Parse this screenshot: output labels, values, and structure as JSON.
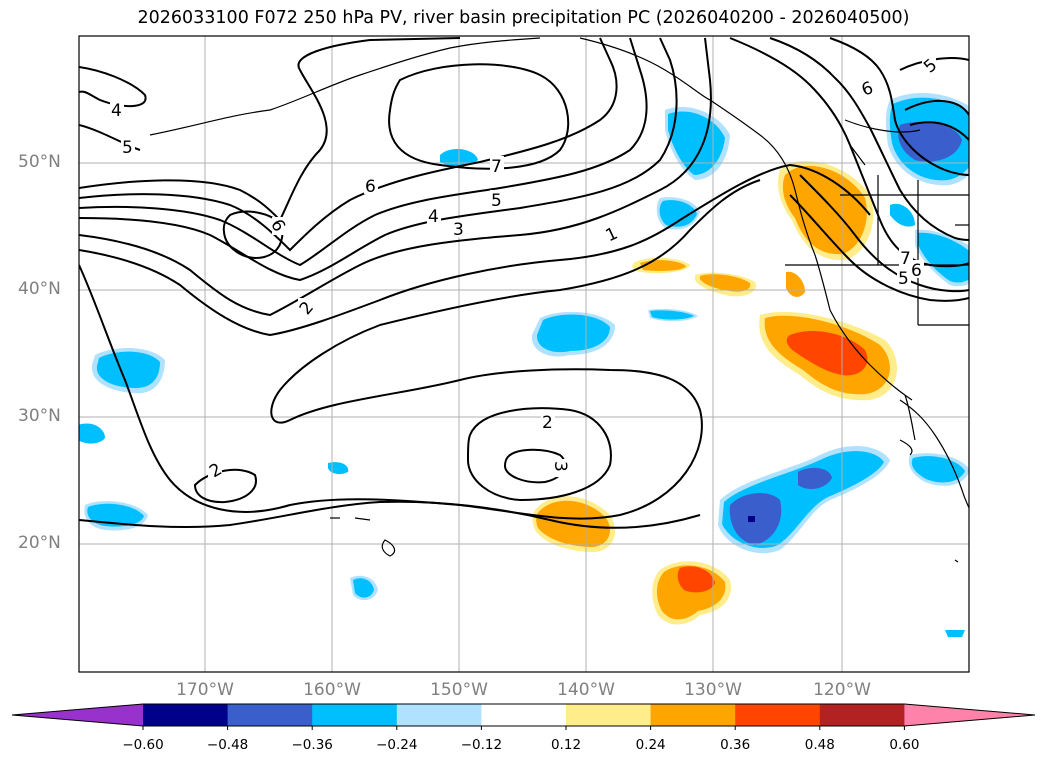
{
  "title": "2026033100 F072 250 hPa PV, river basin precipitation PC (2026040200 - 2026040500)",
  "lat_labels": [
    "50°N",
    "40°N",
    "30°N",
    "20°N"
  ],
  "lon_labels": [
    "170°W",
    "160°W",
    "150°W",
    "140°W",
    "130°W",
    "120°W"
  ],
  "contour_labels": [
    "4",
    "5",
    "6",
    "7",
    "6",
    "5",
    "4",
    "3",
    "1",
    "2",
    "2",
    "3",
    "2",
    "6",
    "7",
    "6",
    "5",
    "5"
  ],
  "colorbar": {
    "ticks": [
      "−0.60",
      "−0.48",
      "−0.36",
      "−0.24",
      "−0.12",
      "0.12",
      "0.24",
      "0.36",
      "0.48",
      "0.60"
    ],
    "colors": [
      "#9932cc",
      "#00008b",
      "#3a5fcd",
      "#00bfff",
      "#b0e2ff",
      "#ffffff",
      "#ffec8b",
      "#ffa500",
      "#ff4500",
      "#b22222",
      "#ff82ab"
    ]
  }
}
